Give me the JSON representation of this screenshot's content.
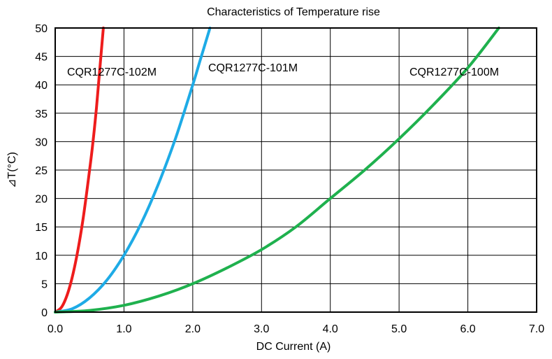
{
  "chart_data": {
    "type": "line",
    "title": "Characteristics of Temperature rise",
    "xlabel": "DC Current (A)",
    "ylabel": "⊿T(°C)",
    "xlim": [
      0,
      7
    ],
    "ylim": [
      0,
      50
    ],
    "x_ticks": [
      "0.0",
      "1.0",
      "2.0",
      "3.0",
      "4.0",
      "5.0",
      "6.0",
      "7.0"
    ],
    "y_ticks": [
      "0",
      "5",
      "10",
      "15",
      "20",
      "25",
      "30",
      "35",
      "40",
      "45",
      "50"
    ],
    "grid": true,
    "series": [
      {
        "name": "CQR1277C-102M",
        "color": "#ee1c1c",
        "x": [
          0,
          0.1,
          0.2,
          0.3,
          0.4,
          0.5,
          0.55,
          0.6,
          0.65,
          0.7
        ],
        "y": [
          0,
          1,
          4,
          9,
          16,
          25,
          30,
          36,
          43,
          50
        ]
      },
      {
        "name": "CQR1277C-101M",
        "color": "#1eabe6",
        "x": [
          0,
          0.25,
          0.5,
          0.75,
          1.0,
          1.25,
          1.5,
          1.75,
          2.0,
          2.1,
          2.25
        ],
        "y": [
          0,
          0.6,
          2.5,
          5.6,
          10,
          15.6,
          22.5,
          30.6,
          40,
          44,
          50
        ]
      },
      {
        "name": "CQR1277C-100M",
        "color": "#1fb14e",
        "x": [
          0,
          0.5,
          1.0,
          1.5,
          2.0,
          2.5,
          3.0,
          3.5,
          4.0,
          4.5,
          5.0,
          5.5,
          6.0,
          6.45
        ],
        "y": [
          0,
          0.3,
          1.2,
          2.8,
          5,
          7.8,
          11,
          15,
          20,
          25,
          30.5,
          36.5,
          43,
          50
        ]
      }
    ]
  }
}
